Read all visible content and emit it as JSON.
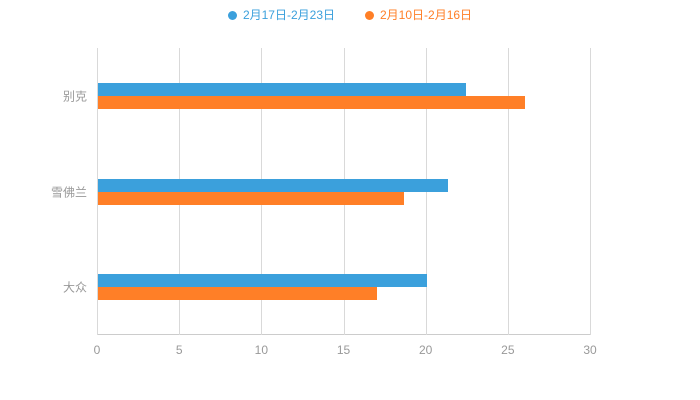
{
  "chart_data": {
    "type": "bar",
    "orientation": "horizontal",
    "title": "",
    "categories": [
      "别克",
      "雪佛兰",
      "大众"
    ],
    "series": [
      {
        "name": "2月17日-2月23日",
        "color": "#3BA0DC",
        "values": [
          22.4,
          21.3,
          20.0
        ]
      },
      {
        "name": "2月10日-2月16日",
        "color": "#FF7F27",
        "values": [
          26.0,
          18.6,
          17.0
        ]
      }
    ],
    "xlabel": "",
    "ylabel": "",
    "xlim": [
      0,
      30
    ],
    "xticks": [
      0,
      5,
      10,
      15,
      20,
      25,
      30
    ],
    "grid": true,
    "legend_position": "top",
    "colors": {
      "gridline": "#d9d9d9",
      "axis_line": "#cccccc",
      "tick_label": "#999999",
      "category_label": "#999999",
      "background": "#ffffff"
    }
  }
}
